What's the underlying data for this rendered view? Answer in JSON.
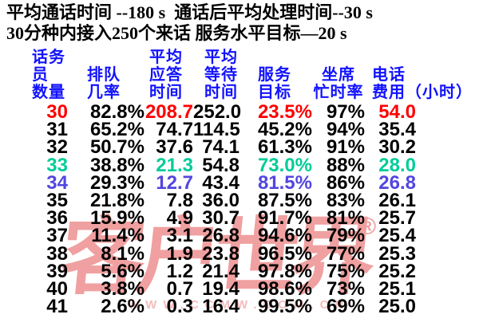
{
  "title": {
    "line1": "平均通话时间 --180 s  通话后平均处理时间--30 s",
    "line2": "30分种内接入250个来话 服务水平目标—20 s"
  },
  "table": {
    "headers": [
      {
        "label": "话务\n员\n数量"
      },
      {
        "label": "排队\n几率"
      },
      {
        "label": "平均\n应答\n时间"
      },
      {
        "label": "平均\n等待\n时间"
      },
      {
        "label": "服务\n目标"
      },
      {
        "label": "坐席\n忙时率"
      },
      {
        "label": "电话\n费用（小时）"
      }
    ]
  },
  "chart_data": {
    "type": "table",
    "title": "平均通话时间 --180 s；通话后平均处理时间 --30 s；30分种内接入250个来话；服务水平目标 —20 s",
    "columns": [
      "话务员数量",
      "排队几率",
      "平均应答时间",
      "平均等待时间",
      "服务目标",
      "坐席忙时率",
      "电话费用（小时）"
    ],
    "rows": [
      [
        "30",
        "82.8%",
        "208.7",
        "252.0",
        "23.5%",
        "97%",
        "54.0"
      ],
      [
        "31",
        "65.2%",
        "74.7",
        "114.5",
        "45.2%",
        "94%",
        "35.4"
      ],
      [
        "32",
        "50.7%",
        "37.6",
        "74.1",
        "61.3%",
        "91%",
        "30.2"
      ],
      [
        "33",
        "38.8%",
        "21.3",
        "54.8",
        "73.0%",
        "88%",
        "28.0"
      ],
      [
        "34",
        "29.3%",
        "12.7",
        "43.4",
        "81.5%",
        "86%",
        "26.8"
      ],
      [
        "35",
        "21.8%",
        "7.8",
        "36.0",
        "87.5%",
        "83%",
        "26.1"
      ],
      [
        "36",
        "15.9%",
        "4.9",
        "30.7",
        "91.7%",
        "81%",
        "25.7"
      ],
      [
        "37",
        "11.4%",
        "3.1",
        "26.8",
        "94.6%",
        "79%",
        "25.4"
      ],
      [
        "38",
        "8.1%",
        "1.9",
        "23.8",
        "96.5%",
        "77%",
        "25.3"
      ],
      [
        "39",
        "5.6%",
        "1.2",
        "21.4",
        "97.8%",
        "75%",
        "25.2"
      ],
      [
        "40",
        "3.8%",
        "0.7",
        "19.4",
        "98.6%",
        "73%",
        "25.1"
      ],
      [
        "41",
        "2.6%",
        "0.3",
        "16.4",
        "99.5%",
        "69%",
        "25.0"
      ]
    ],
    "row_highlights": [
      "red",
      null,
      null,
      "teal",
      "blue",
      null,
      null,
      null,
      null,
      null,
      null,
      null
    ],
    "highlighted_columns_note": "highlight color applies to columns 1,3,5,7 of the highlighted row; other cells stay black"
  },
  "watermark": {
    "brand": "客户世界",
    "registered_mark": "®",
    "url": "WWW.CCMW.COM.CN"
  },
  "colors": {
    "title_black": "#000000",
    "header_blue": "#1212ff",
    "text_black": "#000000",
    "highlight_red": "#ff0000",
    "highlight_teal": "#00cc99",
    "highlight_blue": "#5246e0",
    "watermark_pink": "#f0a0a0",
    "watermark_url_pink": "#f5bcbc"
  }
}
